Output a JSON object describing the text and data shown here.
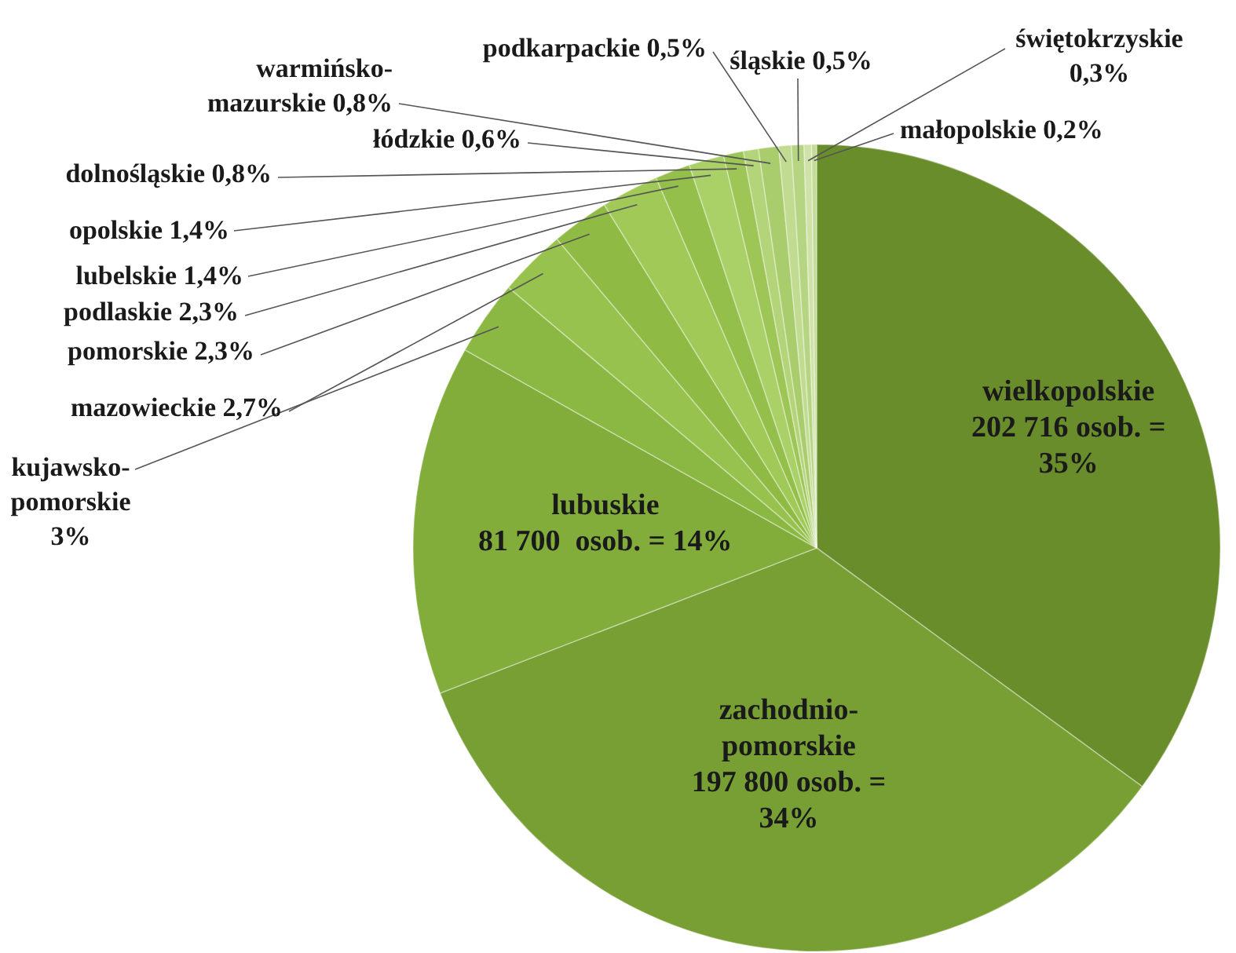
{
  "chart_data": {
    "type": "pie",
    "categories": [
      "wielkopolskie",
      "zachodnio-pomorskie",
      "lubuskie",
      "kujawsko-pomorskie",
      "mazowieckie",
      "pomorskie",
      "podlaskie",
      "lubelskie",
      "opolskie",
      "dolnośląskie",
      "łódzkie",
      "warmińsko-mazurskie",
      "podkarpackie",
      "śląskie",
      "świętokrzyskie",
      "małopolskie"
    ],
    "values": [
      35,
      34,
      14,
      3,
      2.7,
      2.3,
      2.3,
      1.4,
      1.4,
      0.8,
      0.6,
      0.8,
      0.5,
      0.5,
      0.3,
      0.2
    ],
    "value_labels": [
      "202 716 osob. = 35%",
      "197 800 osob. = 34%",
      "81 700  osob. = 14%",
      "3%",
      "2,7%",
      "2,3%",
      "2,3%",
      "1,4%",
      "1,4%",
      "0,8%",
      "0,6%",
      "0,8%",
      "0,5%",
      "0,5%",
      "0,3%",
      "0,2%"
    ],
    "colors": [
      "#6a8d2c",
      "#779f33",
      "#82ad3b",
      "#8bb842",
      "#97c24d",
      "#8fbb45",
      "#a0c958",
      "#93bf4a",
      "#aad068",
      "#9dc657",
      "#b4d479",
      "#a9cd6c",
      "#c1db90",
      "#b5d582",
      "#cfe3a9",
      "#c4dc98"
    ]
  }
}
